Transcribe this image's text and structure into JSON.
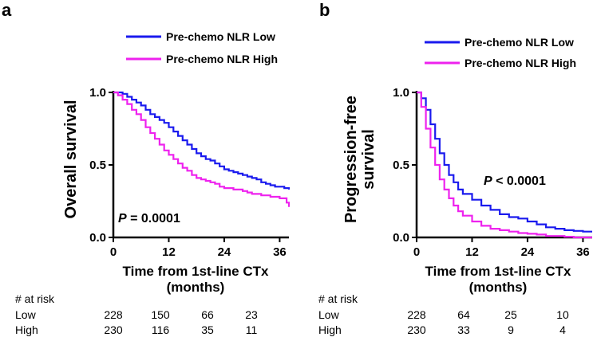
{
  "chart_data": [
    {
      "panel": "a",
      "type": "line",
      "subtype": "kaplan-meier",
      "ylabel": "Overall survival",
      "xlabel": "Time from 1st-line CTx",
      "xlabel_units": "(months)",
      "xlim": [
        0,
        38
      ],
      "ylim": [
        0,
        1
      ],
      "xticks": [
        "0",
        "12",
        "24",
        "36"
      ],
      "yticks": [
        "0.0",
        "0.5",
        "1.0"
      ],
      "legend_position": "top-right",
      "annotation": {
        "prefix": "P",
        "text": " = 0.0001"
      },
      "series": [
        {
          "name": "Pre-chemo NLR Low",
          "color": "#1a1aee",
          "points": [
            [
              0,
              1.0
            ],
            [
              2,
              0.99
            ],
            [
              3,
              0.97
            ],
            [
              4,
              0.95
            ],
            [
              5,
              0.93
            ],
            [
              6,
              0.91
            ],
            [
              7,
              0.88
            ],
            [
              8,
              0.85
            ],
            [
              9,
              0.83
            ],
            [
              10,
              0.81
            ],
            [
              11,
              0.79
            ],
            [
              12,
              0.76
            ],
            [
              13,
              0.73
            ],
            [
              14,
              0.7
            ],
            [
              15,
              0.67
            ],
            [
              16,
              0.64
            ],
            [
              17,
              0.61
            ],
            [
              18,
              0.58
            ],
            [
              19,
              0.56
            ],
            [
              20,
              0.54
            ],
            [
              21,
              0.53
            ],
            [
              22,
              0.51
            ],
            [
              23,
              0.49
            ],
            [
              24,
              0.47
            ],
            [
              25,
              0.46
            ],
            [
              26,
              0.45
            ],
            [
              27,
              0.44
            ],
            [
              28,
              0.43
            ],
            [
              29,
              0.42
            ],
            [
              30,
              0.41
            ],
            [
              31,
              0.4
            ],
            [
              32,
              0.38
            ],
            [
              33,
              0.37
            ],
            [
              34,
              0.36
            ],
            [
              35,
              0.35
            ],
            [
              36,
              0.35
            ],
            [
              37,
              0.34
            ],
            [
              38,
              0.33
            ]
          ]
        },
        {
          "name": "Pre-chemo NLR High",
          "color": "#ee22ee",
          "points": [
            [
              0,
              1.0
            ],
            [
              1,
              0.98
            ],
            [
              2,
              0.95
            ],
            [
              3,
              0.92
            ],
            [
              4,
              0.88
            ],
            [
              5,
              0.85
            ],
            [
              6,
              0.81
            ],
            [
              7,
              0.76
            ],
            [
              8,
              0.72
            ],
            [
              9,
              0.68
            ],
            [
              10,
              0.64
            ],
            [
              11,
              0.6
            ],
            [
              12,
              0.57
            ],
            [
              13,
              0.54
            ],
            [
              14,
              0.51
            ],
            [
              15,
              0.48
            ],
            [
              16,
              0.46
            ],
            [
              17,
              0.43
            ],
            [
              18,
              0.41
            ],
            [
              19,
              0.4
            ],
            [
              20,
              0.39
            ],
            [
              21,
              0.38
            ],
            [
              22,
              0.37
            ],
            [
              23,
              0.35
            ],
            [
              24,
              0.34
            ],
            [
              25,
              0.34
            ],
            [
              26,
              0.33
            ],
            [
              27,
              0.33
            ],
            [
              28,
              0.32
            ],
            [
              29,
              0.31
            ],
            [
              30,
              0.3
            ],
            [
              31,
              0.3
            ],
            [
              32,
              0.29
            ],
            [
              33,
              0.29
            ],
            [
              34,
              0.28
            ],
            [
              35,
              0.28
            ],
            [
              36,
              0.27
            ],
            [
              37,
              0.27
            ],
            [
              37.5,
              0.24
            ],
            [
              38,
              0.21
            ]
          ]
        }
      ]
    },
    {
      "panel": "b",
      "type": "line",
      "subtype": "kaplan-meier",
      "ylabel": "Progression-free",
      "ylabel2": "survival",
      "xlabel": "Time from 1st-line CTx",
      "xlabel_units": "(months)",
      "xlim": [
        0,
        38
      ],
      "ylim": [
        0,
        1
      ],
      "xticks": [
        "0",
        "12",
        "24",
        "36"
      ],
      "yticks": [
        "0.0",
        "0.5",
        "1.0"
      ],
      "legend_position": "top-right",
      "annotation": {
        "prefix": "P",
        "text": " < 0.0001"
      },
      "series": [
        {
          "name": "Pre-chemo NLR Low",
          "color": "#1a1aee",
          "points": [
            [
              0,
              1.0
            ],
            [
              1,
              0.96
            ],
            [
              2,
              0.88
            ],
            [
              3,
              0.78
            ],
            [
              4,
              0.68
            ],
            [
              5,
              0.58
            ],
            [
              6,
              0.5
            ],
            [
              7,
              0.43
            ],
            [
              8,
              0.38
            ],
            [
              9,
              0.33
            ],
            [
              10,
              0.3
            ],
            [
              12,
              0.26
            ],
            [
              14,
              0.22
            ],
            [
              16,
              0.19
            ],
            [
              18,
              0.16
            ],
            [
              20,
              0.14
            ],
            [
              22,
              0.13
            ],
            [
              24,
              0.11
            ],
            [
              26,
              0.09
            ],
            [
              28,
              0.07
            ],
            [
              30,
              0.06
            ],
            [
              32,
              0.05
            ],
            [
              34,
              0.045
            ],
            [
              36,
              0.04
            ],
            [
              38,
              0.04
            ]
          ]
        },
        {
          "name": "Pre-chemo NLR High",
          "color": "#ee22ee",
          "points": [
            [
              0,
              1.0
            ],
            [
              1,
              0.9
            ],
            [
              2,
              0.75
            ],
            [
              3,
              0.62
            ],
            [
              4,
              0.5
            ],
            [
              5,
              0.4
            ],
            [
              6,
              0.33
            ],
            [
              7,
              0.27
            ],
            [
              8,
              0.22
            ],
            [
              9,
              0.18
            ],
            [
              10,
              0.15
            ],
            [
              12,
              0.11
            ],
            [
              14,
              0.08
            ],
            [
              16,
              0.06
            ],
            [
              18,
              0.05
            ],
            [
              20,
              0.04
            ],
            [
              22,
              0.03
            ],
            [
              24,
              0.025
            ],
            [
              26,
              0.02
            ],
            [
              28,
              0.01
            ],
            [
              30,
              0.01
            ],
            [
              32,
              0.005
            ],
            [
              34,
              0.0
            ],
            [
              36,
              0.0
            ],
            [
              38,
              0.0
            ]
          ]
        }
      ]
    }
  ],
  "risk_table": [
    {
      "title": "# at risk",
      "rows": [
        {
          "label": "Low",
          "values": [
            "228",
            "150",
            "66",
            "23"
          ]
        },
        {
          "label": "High",
          "values": [
            "230",
            "116",
            "35",
            "11"
          ]
        }
      ]
    },
    {
      "title": "# at risk",
      "rows": [
        {
          "label": "Low",
          "values": [
            "228",
            "64",
            "25",
            "10"
          ]
        },
        {
          "label": "High",
          "values": [
            "230",
            "33",
            "9",
            "4"
          ]
        }
      ]
    }
  ]
}
